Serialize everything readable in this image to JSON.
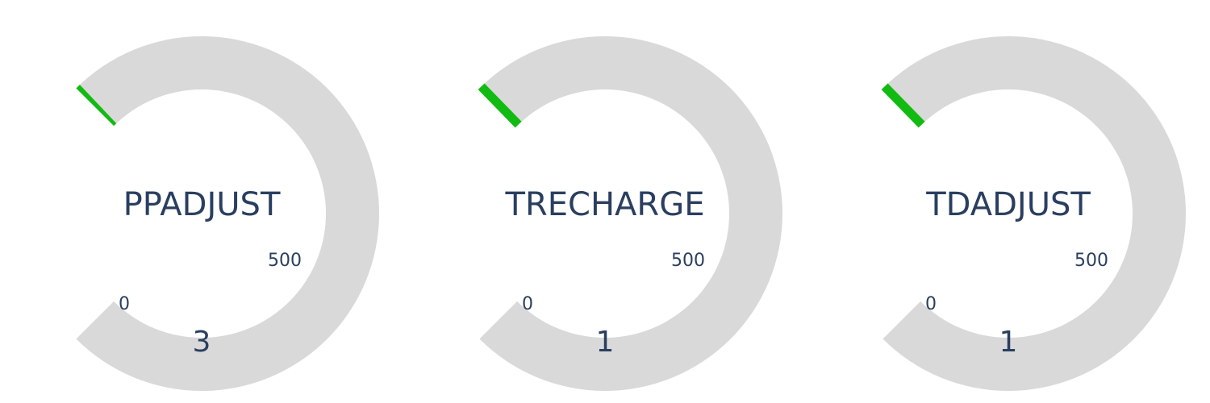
{
  "chart_data": [
    {
      "type": "gauge",
      "title": "PPADJUST",
      "value": 3,
      "value_label": "3",
      "range": [
        0,
        500
      ],
      "ticks": [
        "0",
        "500"
      ]
    },
    {
      "type": "gauge",
      "title": "TRECHARGE",
      "value": 1,
      "value_label": "1",
      "range": [
        0,
        500
      ],
      "ticks": [
        "0",
        "500"
      ]
    },
    {
      "type": "gauge",
      "title": "TDADJUST",
      "value": 1,
      "value_label": "1",
      "range": [
        0,
        500
      ],
      "ticks": [
        "0",
        "500"
      ]
    }
  ],
  "colors": {
    "track": "#d9d9d9",
    "bar": "#11bb11",
    "text": "#2a3f5f"
  }
}
